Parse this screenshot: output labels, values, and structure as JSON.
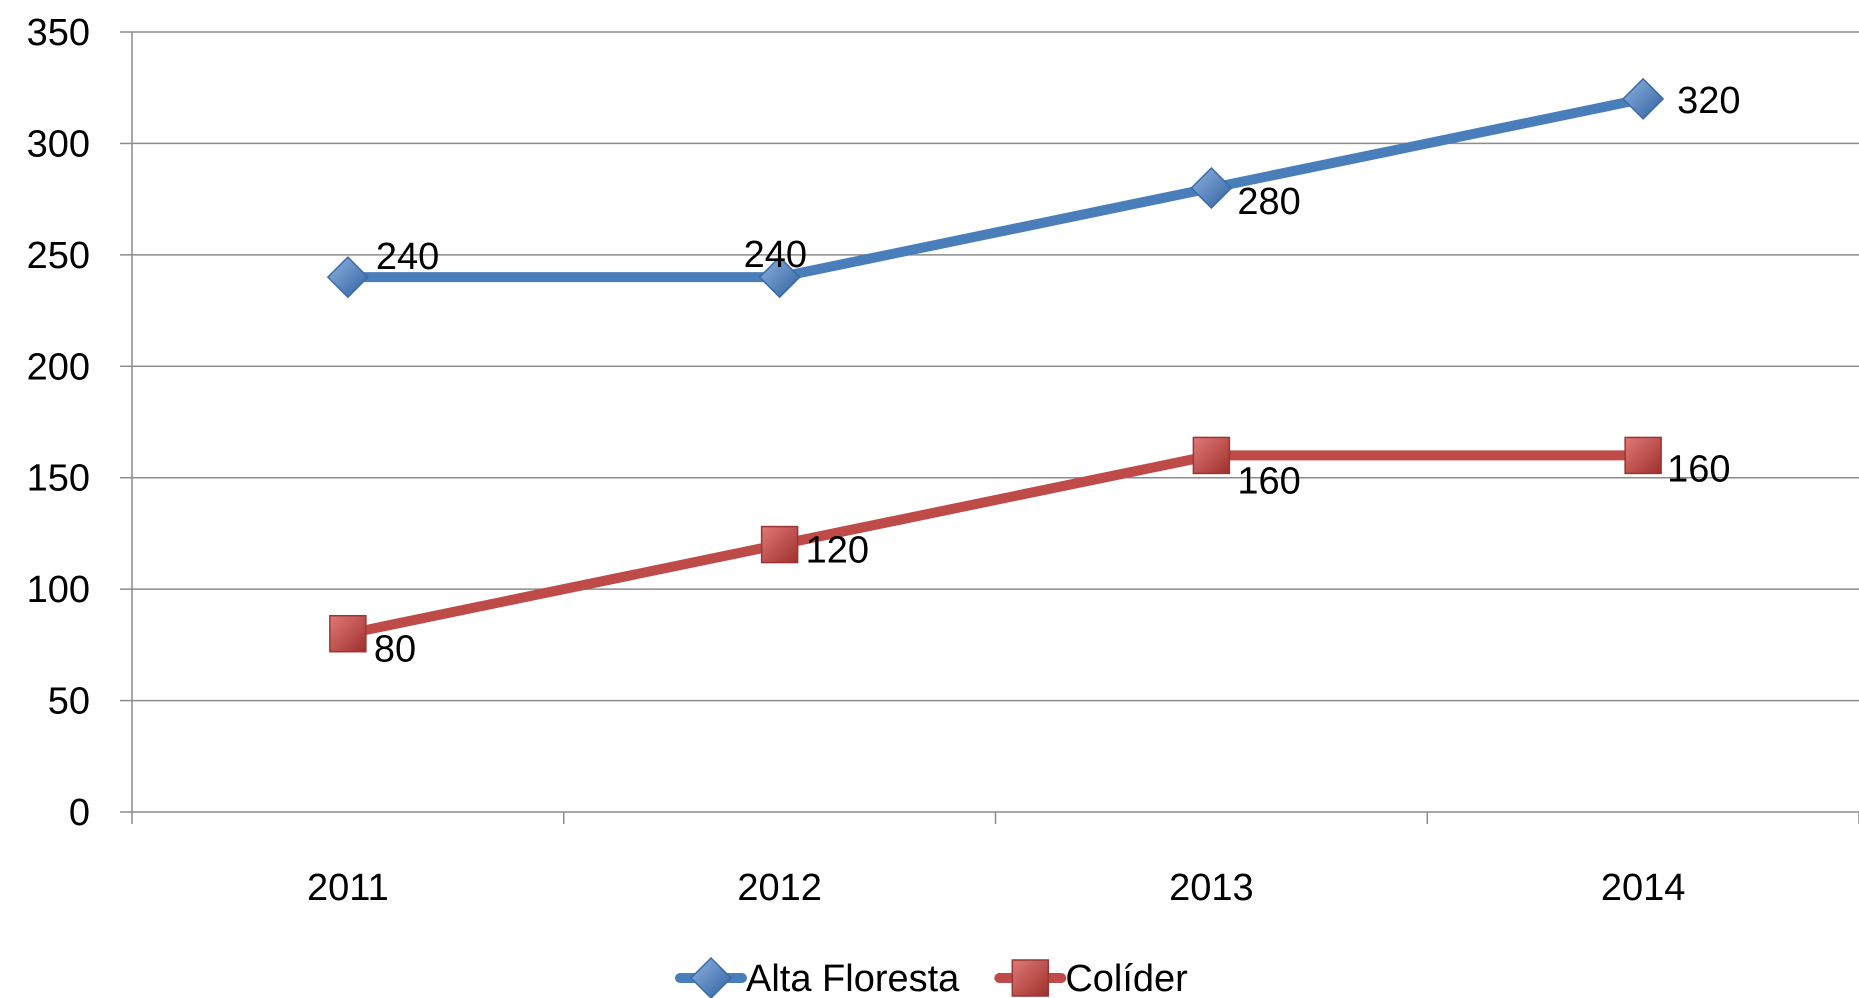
{
  "chart_data": {
    "type": "line",
    "title": "",
    "xlabel": "",
    "ylabel": "",
    "categories": [
      "2011",
      "2012",
      "2013",
      "2014"
    ],
    "ylim": [
      0,
      350
    ],
    "yticks": [
      0,
      50,
      100,
      150,
      200,
      250,
      300,
      350
    ],
    "grid": true,
    "legend_position": "bottom",
    "series": [
      {
        "name": "Alta Floresta",
        "values": [
          240,
          240,
          280,
          320
        ],
        "color": "#4a7ebb",
        "marker": "diamond"
      },
      {
        "name": "Colíder",
        "values": [
          80,
          120,
          160,
          160
        ],
        "color": "#be4b48",
        "marker": "square"
      }
    ]
  }
}
